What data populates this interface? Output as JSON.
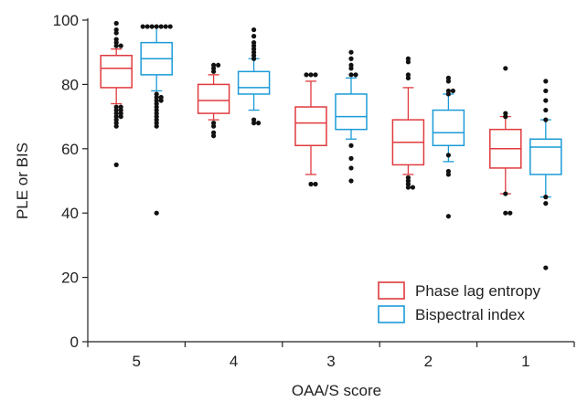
{
  "chart_data": {
    "type": "box",
    "xlabel": "OAA/S score",
    "ylabel": "PLE or BIS",
    "categories": [
      "5",
      "4",
      "3",
      "2",
      "1"
    ],
    "yticks": [
      0,
      20,
      40,
      60,
      80,
      100
    ],
    "ylim": [
      0,
      100
    ],
    "legend_position": "bottom-right",
    "series": [
      {
        "name": "Phase lag entropy",
        "color": "#e03a3e",
        "boxes": [
          {
            "whisker_low": 74,
            "q1": 79,
            "median": 85,
            "q3": 89,
            "whisker_high": 91,
            "outliers": [
              55,
              67,
              68,
              69,
              70,
              70,
              71,
              71,
              72,
              72,
              73,
              73,
              92,
              92,
              93,
              94,
              96,
              97,
              99
            ]
          },
          {
            "whisker_low": 69,
            "q1": 71,
            "median": 75,
            "q3": 80,
            "whisker_high": 83,
            "outliers": [
              64,
              65,
              67,
              68,
              84,
              85,
              86,
              86
            ]
          },
          {
            "whisker_low": 52,
            "q1": 61,
            "median": 68,
            "q3": 73,
            "whisker_high": 81,
            "outliers": [
              49,
              49,
              83,
              83,
              83
            ]
          },
          {
            "whisker_low": 52,
            "q1": 55,
            "median": 62,
            "q3": 69,
            "whisker_high": 79,
            "outliers": [
              48,
              48,
              49,
              50,
              51,
              82,
              83,
              87,
              88
            ]
          },
          {
            "whisker_low": 46,
            "q1": 54,
            "median": 60,
            "q3": 66,
            "whisker_high": 70,
            "outliers": [
              40,
              40,
              46,
              70,
              71,
              85
            ]
          }
        ]
      },
      {
        "name": "Bispectral index",
        "color": "#1a9bd7",
        "boxes": [
          {
            "whisker_low": 78,
            "q1": 83,
            "median": 88,
            "q3": 93,
            "whisker_high": 98,
            "outliers": [
              40,
              67,
              68,
              69,
              70,
              71,
              72,
              73,
              74,
              75,
              75,
              76,
              76,
              77,
              98,
              98,
              98,
              98,
              98,
              98,
              98
            ]
          },
          {
            "whisker_low": 72,
            "q1": 77,
            "median": 79,
            "q3": 84,
            "whisker_high": 88,
            "outliers": [
              68,
              68,
              69,
              88,
              89,
              90,
              91,
              92,
              93,
              95,
              97
            ]
          },
          {
            "whisker_low": 63,
            "q1": 66,
            "median": 70,
            "q3": 77,
            "whisker_high": 82,
            "outliers": [
              50,
              54,
              57,
              61,
              83,
              83,
              85,
              86,
              88,
              90
            ]
          },
          {
            "whisker_low": 56,
            "q1": 61,
            "median": 65,
            "q3": 72,
            "whisker_high": 77,
            "outliers": [
              39,
              52,
              53,
              58,
              77,
              78,
              78,
              81,
              82
            ]
          },
          {
            "whisker_low": 45,
            "q1": 52,
            "median": 60.5,
            "q3": 63,
            "whisker_high": 69,
            "outliers": [
              23,
              43,
              45,
              69,
              72,
              75,
              78,
              81
            ]
          }
        ]
      }
    ]
  }
}
